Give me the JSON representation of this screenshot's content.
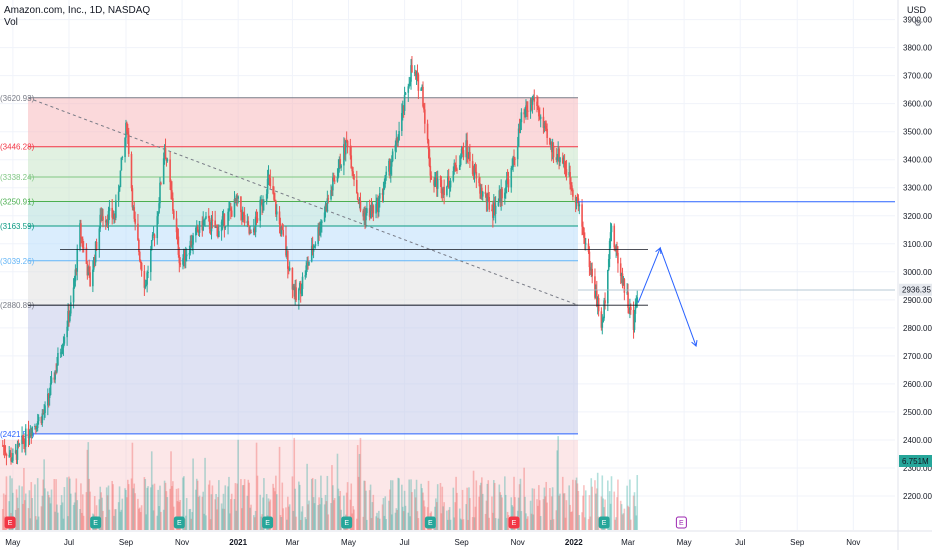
{
  "header": {
    "symbol_line": "Amazon.com, Inc., 1D, NASDAQ",
    "indicator": "Vol",
    "currency": "USD",
    "settings_icon": "gear-icon"
  },
  "colors": {
    "up": "#26a69a",
    "down": "#ef5350",
    "fib_band_red": "#f7b9bd",
    "fib_band_green": "#c8e6c9",
    "fib_band_teal": "#b2dfdb",
    "fib_band_blue": "#bbdefb",
    "fib_band_gray": "#e0e0e0",
    "fib_band_indigo": "#c5cae9",
    "projection": "#2962ff",
    "badge_price": "#e6e9ee",
    "badge_vol": "#26a69a"
  },
  "chart_data": {
    "type": "candlestick",
    "title": "Amazon.com, Inc., 1D, NASDAQ",
    "ylim": [
      2150,
      3920
    ],
    "yticks": [
      2200,
      2300,
      2400,
      2500,
      2600,
      2700,
      2800,
      2900,
      3000,
      3100,
      3200,
      3300,
      3400,
      3500,
      3600,
      3700,
      3800,
      3900
    ],
    "ytick_labels": [
      "2200.00",
      "2300.00",
      "2400.00",
      "2500.00",
      "2600.00",
      "2700.00",
      "2800.00",
      "2900.00",
      "3000.00",
      "3100.00",
      "3200.00",
      "3300.00",
      "3400.00",
      "3500.00",
      "3600.00",
      "3700.00",
      "3800.00",
      "3900.00"
    ],
    "xlabels": [
      {
        "label": "May",
        "date": "2020-05-01",
        "bold": false
      },
      {
        "label": "Jul",
        "date": "2020-07-01",
        "bold": false
      },
      {
        "label": "Sep",
        "date": "2020-09-01",
        "bold": false
      },
      {
        "label": "Nov",
        "date": "2020-11-01",
        "bold": false
      },
      {
        "label": "2021",
        "date": "2021-01-01",
        "bold": true
      },
      {
        "label": "Mar",
        "date": "2021-03-01",
        "bold": false
      },
      {
        "label": "May",
        "date": "2021-05-01",
        "bold": false
      },
      {
        "label": "Jul",
        "date": "2021-07-01",
        "bold": false
      },
      {
        "label": "Sep",
        "date": "2021-09-01",
        "bold": false
      },
      {
        "label": "Nov",
        "date": "2021-11-01",
        "bold": false
      },
      {
        "label": "2022",
        "date": "2022-01-01",
        "bold": true
      },
      {
        "label": "Mar",
        "date": "2022-03-01",
        "bold": false
      },
      {
        "label": "May",
        "date": "2022-05-01",
        "bold": false
      },
      {
        "label": "Jul",
        "date": "2022-07-01",
        "bold": false
      },
      {
        "label": "Sep",
        "date": "2022-09-01",
        "bold": false
      },
      {
        "label": "Nov",
        "date": "2022-11-01",
        "bold": false
      }
    ],
    "price_path": [
      [
        "2020-04-20",
        2380
      ],
      [
        "2020-05-01",
        2330
      ],
      [
        "2020-05-20",
        2440
      ],
      [
        "2020-06-05",
        2500
      ],
      [
        "2020-06-20",
        2700
      ],
      [
        "2020-07-05",
        2900
      ],
      [
        "2020-07-13",
        3150
      ],
      [
        "2020-07-24",
        2960
      ],
      [
        "2020-08-05",
        3200
      ],
      [
        "2020-08-20",
        3200
      ],
      [
        "2020-09-02",
        3530
      ],
      [
        "2020-09-10",
        3170
      ],
      [
        "2020-09-22",
        2950
      ],
      [
        "2020-10-05",
        3200
      ],
      [
        "2020-10-13",
        3450
      ],
      [
        "2020-10-30",
        3030
      ],
      [
        "2020-11-10",
        3100
      ],
      [
        "2020-11-25",
        3180
      ],
      [
        "2020-12-10",
        3150
      ],
      [
        "2020-12-31",
        3250
      ],
      [
        "2021-01-15",
        3120
      ],
      [
        "2021-02-03",
        3330
      ],
      [
        "2021-02-20",
        3100
      ],
      [
        "2021-03-05",
        2900
      ],
      [
        "2021-03-20",
        3050
      ],
      [
        "2021-04-05",
        3220
      ],
      [
        "2021-04-30",
        3470
      ],
      [
        "2021-05-15",
        3200
      ],
      [
        "2021-06-01",
        3230
      ],
      [
        "2021-06-22",
        3450
      ],
      [
        "2021-07-08",
        3720
      ],
      [
        "2021-07-20",
        3650
      ],
      [
        "2021-07-30",
        3330
      ],
      [
        "2021-08-15",
        3300
      ],
      [
        "2021-09-05",
        3450
      ],
      [
        "2021-09-20",
        3300
      ],
      [
        "2021-10-05",
        3220
      ],
      [
        "2021-10-25",
        3350
      ],
      [
        "2021-11-05",
        3540
      ],
      [
        "2021-11-19",
        3620
      ],
      [
        "2021-12-05",
        3450
      ],
      [
        "2021-12-20",
        3400
      ],
      [
        "2022-01-05",
        3250
      ],
      [
        "2022-01-20",
        3000
      ],
      [
        "2022-02-01",
        2800
      ],
      [
        "2022-02-10",
        3150
      ],
      [
        "2022-02-25",
        2950
      ],
      [
        "2022-03-07",
        2800
      ],
      [
        "2022-03-11",
        2936
      ]
    ],
    "fib_levels": [
      {
        "label": "(3620.93)",
        "value": 3620.93,
        "color": "#787b86"
      },
      {
        "label": "(3446.28)",
        "value": 3446.28,
        "color": "#f23645"
      },
      {
        "label": "(3338.24)",
        "value": 3338.24,
        "color": "#81c784"
      },
      {
        "label": "(3250.91)",
        "value": 3250.91,
        "color": "#4caf50"
      },
      {
        "label": "(3163.59)",
        "value": 3163.59,
        "color": "#089981"
      },
      {
        "label": "(3039.26)",
        "value": 3039.26,
        "color": "#64b5f6"
      },
      {
        "label": "(2880.89)",
        "value": 2880.89,
        "color": "#787b86"
      },
      {
        "label": "(2421.54)",
        "value": 2421.54,
        "color": "#2962ff"
      }
    ],
    "last_price": "2936.35",
    "volume_label": "6.751M",
    "horizontal_lines": [
      3250,
      3080,
      2935
    ],
    "projection_points": [
      [
        "2022-03-12",
        2890
      ],
      [
        "2022-04-05",
        3085
      ],
      [
        "2022-05-14",
        2735
      ]
    ],
    "event_markers": [
      {
        "type": "dividend",
        "letter": "E",
        "date": "2020-04-28"
      },
      {
        "type": "earnings",
        "letter": "E",
        "date": "2020-07-30"
      },
      {
        "type": "earnings",
        "letter": "E",
        "date": "2020-10-29"
      },
      {
        "type": "earnings",
        "letter": "E",
        "date": "2021-02-02"
      },
      {
        "type": "earnings",
        "letter": "E",
        "date": "2021-04-29"
      },
      {
        "type": "earnings",
        "letter": "E",
        "date": "2021-07-29"
      },
      {
        "type": "dividend",
        "letter": "E",
        "date": "2021-10-28"
      },
      {
        "type": "earnings",
        "letter": "E",
        "date": "2022-02-03"
      },
      {
        "type": "future",
        "letter": "E",
        "date": "2022-04-28"
      }
    ]
  }
}
